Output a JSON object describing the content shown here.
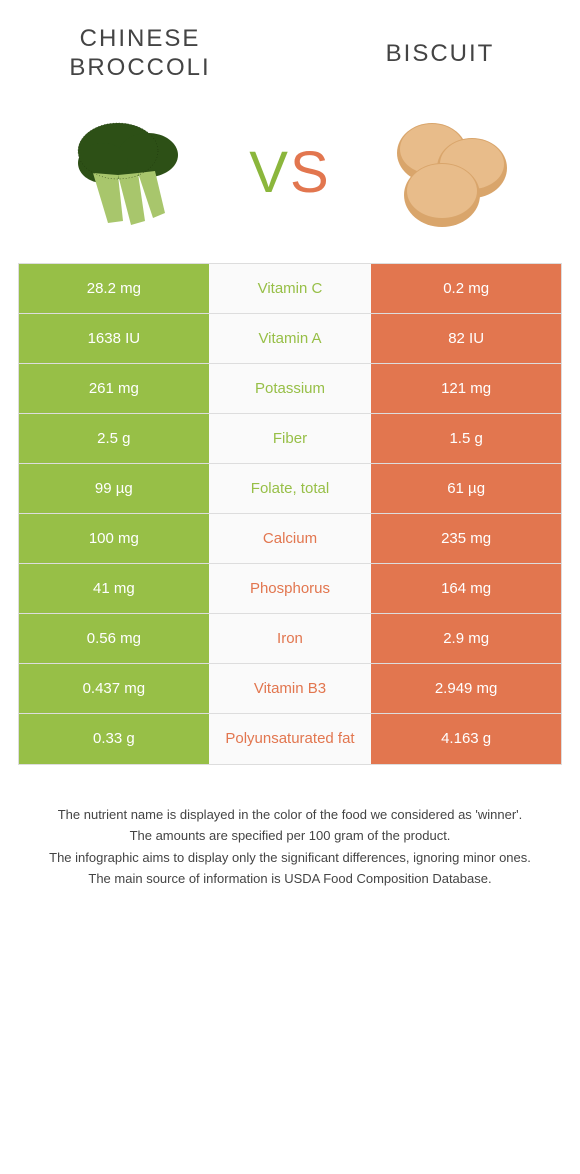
{
  "colors": {
    "green": "#97bf47",
    "orange": "#e2764f",
    "mid_bg": "#fafafa",
    "border": "#dddddd"
  },
  "header": {
    "left_title": "Chinese broccoli",
    "right_title": "Biscuit",
    "vs_v": "V",
    "vs_s": "S"
  },
  "rows": [
    {
      "left": "28.2 mg",
      "label": "Vitamin C",
      "right": "0.2 mg",
      "winner": "left"
    },
    {
      "left": "1638 IU",
      "label": "Vitamin A",
      "right": "82 IU",
      "winner": "left"
    },
    {
      "left": "261 mg",
      "label": "Potassium",
      "right": "121 mg",
      "winner": "left"
    },
    {
      "left": "2.5 g",
      "label": "Fiber",
      "right": "1.5 g",
      "winner": "left"
    },
    {
      "left": "99 µg",
      "label": "Folate, total",
      "right": "61 µg",
      "winner": "left"
    },
    {
      "left": "100 mg",
      "label": "Calcium",
      "right": "235 mg",
      "winner": "right"
    },
    {
      "left": "41 mg",
      "label": "Phosphorus",
      "right": "164 mg",
      "winner": "right"
    },
    {
      "left": "0.56 mg",
      "label": "Iron",
      "right": "2.9 mg",
      "winner": "right"
    },
    {
      "left": "0.437 mg",
      "label": "Vitamin B3",
      "right": "2.949 mg",
      "winner": "right"
    },
    {
      "left": "0.33 g",
      "label": "Polyunsaturated fat",
      "right": "4.163 g",
      "winner": "right"
    }
  ],
  "footer": {
    "line1": "The nutrient name is displayed in the color of the food we considered as 'winner'.",
    "line2": "The amounts are specified per 100 gram of the product.",
    "line3": "The infographic aims to display only the significant differences, ignoring minor ones.",
    "line4": "The main source of information is USDA Food Composition Database."
  }
}
